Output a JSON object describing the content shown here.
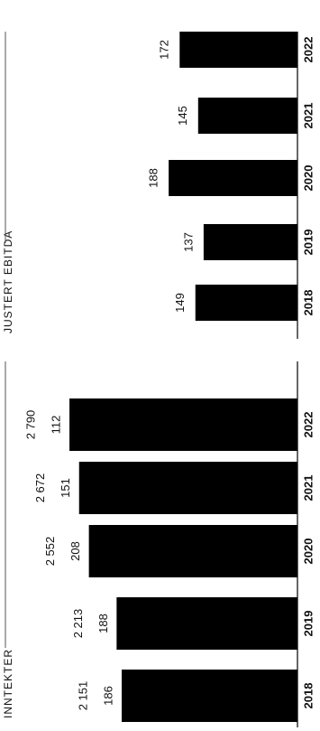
{
  "chart_data": [
    {
      "type": "bar",
      "title": "INNTEKTER",
      "categories": [
        "2018",
        "2019",
        "2020",
        "2021",
        "2022"
      ],
      "values": [
        2151,
        2213,
        2552,
        2672,
        2790
      ],
      "value_labels": [
        "2 151",
        "2 213",
        "2 552",
        "2 672",
        "2 790"
      ],
      "extra_values": [
        186,
        188,
        208,
        151,
        112
      ],
      "color": "#000000",
      "ylim": [
        0,
        3000
      ]
    },
    {
      "type": "bar",
      "title": "JUSTERT EBITDA",
      "categories": [
        "2018",
        "2019",
        "2020",
        "2021",
        "2022"
      ],
      "values": [
        149,
        137,
        188,
        145,
        172
      ],
      "color": "#000000",
      "ylim": [
        0,
        250
      ]
    }
  ]
}
